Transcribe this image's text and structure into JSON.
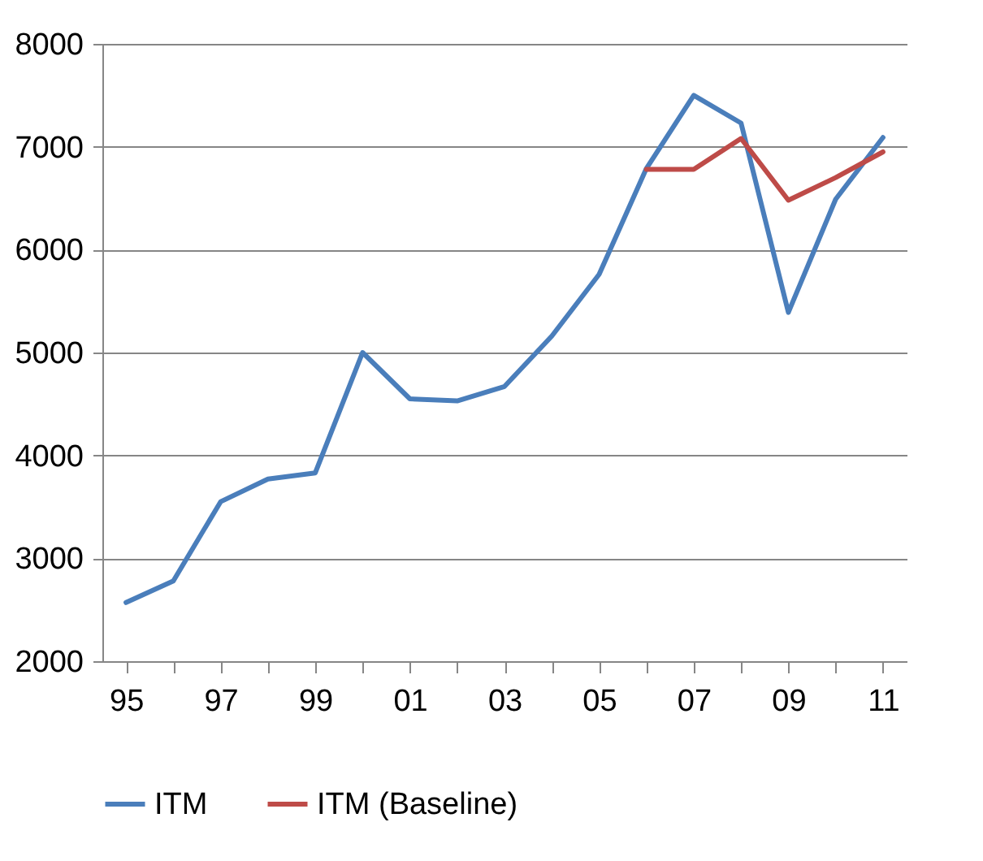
{
  "chart_data": {
    "type": "line",
    "categories": [
      "95",
      null,
      "97",
      null,
      "99",
      null,
      "01",
      null,
      "03",
      null,
      "05",
      null,
      "07",
      null,
      "09",
      null,
      "11"
    ],
    "series": [
      {
        "name": "ITM",
        "color": "#4a7ebb",
        "values": [
          2570,
          2780,
          3550,
          3770,
          3830,
          5000,
          4550,
          4530,
          4670,
          5160,
          5760,
          6790,
          7500,
          7230,
          5390,
          6490,
          7090
        ]
      },
      {
        "name": "ITM (Baseline)",
        "color": "#be4b48",
        "values": [
          null,
          null,
          null,
          null,
          null,
          null,
          null,
          null,
          null,
          null,
          null,
          6780,
          6780,
          7080,
          6480,
          6700,
          6950
        ]
      }
    ],
    "ylim": [
      2000,
      8000
    ],
    "yticks": [
      2000,
      3000,
      4000,
      5000,
      6000,
      7000,
      8000
    ],
    "grid": "y",
    "legend": "bottom"
  }
}
